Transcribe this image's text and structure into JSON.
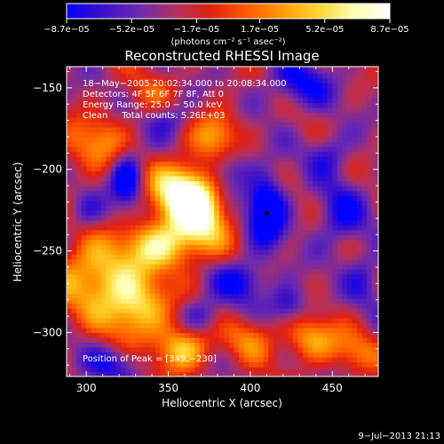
{
  "chart_data": {
    "type": "heatmap",
    "title": "Reconstructed RHESSI Image",
    "xlabel": "Heliocentric X (arcsec)",
    "ylabel": "Heliocentric Y (arcsec)",
    "xlim": [
      288,
      478
    ],
    "ylim": [
      -327,
      -137
    ],
    "x_ticks": [
      300,
      350,
      400,
      450
    ],
    "y_ticks": [
      -150,
      -200,
      -250,
      -300
    ],
    "colorbar": {
      "range": [
        -8.7e-05,
        8.7e-05
      ],
      "tick_values": [
        -8.7e-05,
        -5.2e-05,
        -1.7e-05,
        1.7e-05,
        5.2e-05,
        8.7e-05
      ],
      "tick_labels": [
        "−8.7e−05",
        "−5.2e−05",
        "−1.7e−05",
        "1.7e−05",
        "5.2e−05",
        "8.7e−05"
      ],
      "unit_label": "(photons cm⁻² s⁻¹ asec⁻²)",
      "colors": [
        "#0000ff",
        "#3c0fc8",
        "#6b2ab0",
        "#b03060",
        "#e02010",
        "#ff5a00",
        "#ff9a00",
        "#ffd530",
        "#ffffb0",
        "#ffffff"
      ]
    },
    "info_lines": [
      "18−May−2005 20:02:34.000 to 20:08:34.000",
      "Detectors: 4F 5F 6F 7F 8F, Att 0",
      "Energy Range: 25.0 − 50.0 keV",
      "Clean     Total counts: 5.26E+03"
    ],
    "peak_label": "Position of Peak = [349,−230]",
    "marker": {
      "x": 410,
      "y": -227
    },
    "blobs": [
      {
        "x": 358,
        "y": -213,
        "sx": 14,
        "sy": 13,
        "amp": 1.0
      },
      {
        "x": 370,
        "y": -228,
        "sx": 12,
        "sy": 16,
        "amp": 0.9
      },
      {
        "x": 345,
        "y": -246,
        "sx": 15,
        "sy": 11,
        "amp": 0.85
      },
      {
        "x": 305,
        "y": -265,
        "sx": 18,
        "sy": 16,
        "amp": 0.8
      },
      {
        "x": 330,
        "y": -285,
        "sx": 14,
        "sy": 14,
        "amp": 0.85
      },
      {
        "x": 358,
        "y": -310,
        "sx": 12,
        "sy": 10,
        "amp": 0.8
      },
      {
        "x": 305,
        "y": -185,
        "sx": 14,
        "sy": 12,
        "amp": 0.55
      },
      {
        "x": 380,
        "y": -180,
        "sx": 10,
        "sy": 12,
        "amp": 0.65
      },
      {
        "x": 400,
        "y": -303,
        "sx": 11,
        "sy": 10,
        "amp": 0.45
      },
      {
        "x": 437,
        "y": -304,
        "sx": 12,
        "sy": 10,
        "amp": 0.65
      },
      {
        "x": 465,
        "y": -312,
        "sx": 10,
        "sy": 9,
        "amp": 0.45
      },
      {
        "x": 340,
        "y": -156,
        "sx": 12,
        "sy": 12,
        "amp": 0.3
      },
      {
        "x": 325,
        "y": -205,
        "sx": 7,
        "sy": 12,
        "amp": -0.75
      },
      {
        "x": 410,
        "y": -225,
        "sx": 8,
        "sy": 14,
        "amp": -0.95
      },
      {
        "x": 385,
        "y": -200,
        "sx": 10,
        "sy": 11,
        "amp": -0.55
      },
      {
        "x": 350,
        "y": -168,
        "sx": 10,
        "sy": 8,
        "amp": -0.45
      },
      {
        "x": 430,
        "y": -148,
        "sx": 14,
        "sy": 10,
        "amp": -0.5
      },
      {
        "x": 455,
        "y": -228,
        "sx": 10,
        "sy": 13,
        "amp": -0.5
      },
      {
        "x": 395,
        "y": -268,
        "sx": 11,
        "sy": 9,
        "amp": -0.55
      },
      {
        "x": 423,
        "y": -283,
        "sx": 8,
        "sy": 8,
        "amp": -0.5
      },
      {
        "x": 370,
        "y": -290,
        "sx": 9,
        "sy": 8,
        "amp": -0.4
      },
      {
        "x": 300,
        "y": -225,
        "sx": 8,
        "sy": 8,
        "amp": -0.35
      },
      {
        "x": 318,
        "y": -318,
        "sx": 12,
        "sy": 8,
        "amp": -0.45
      },
      {
        "x": 448,
        "y": -190,
        "sx": 9,
        "sy": 9,
        "amp": -0.4
      },
      {
        "x": 470,
        "y": -265,
        "sx": 8,
        "sy": 12,
        "amp": -0.35
      }
    ]
  },
  "timestamp": "9−Jul−2013 21:13"
}
